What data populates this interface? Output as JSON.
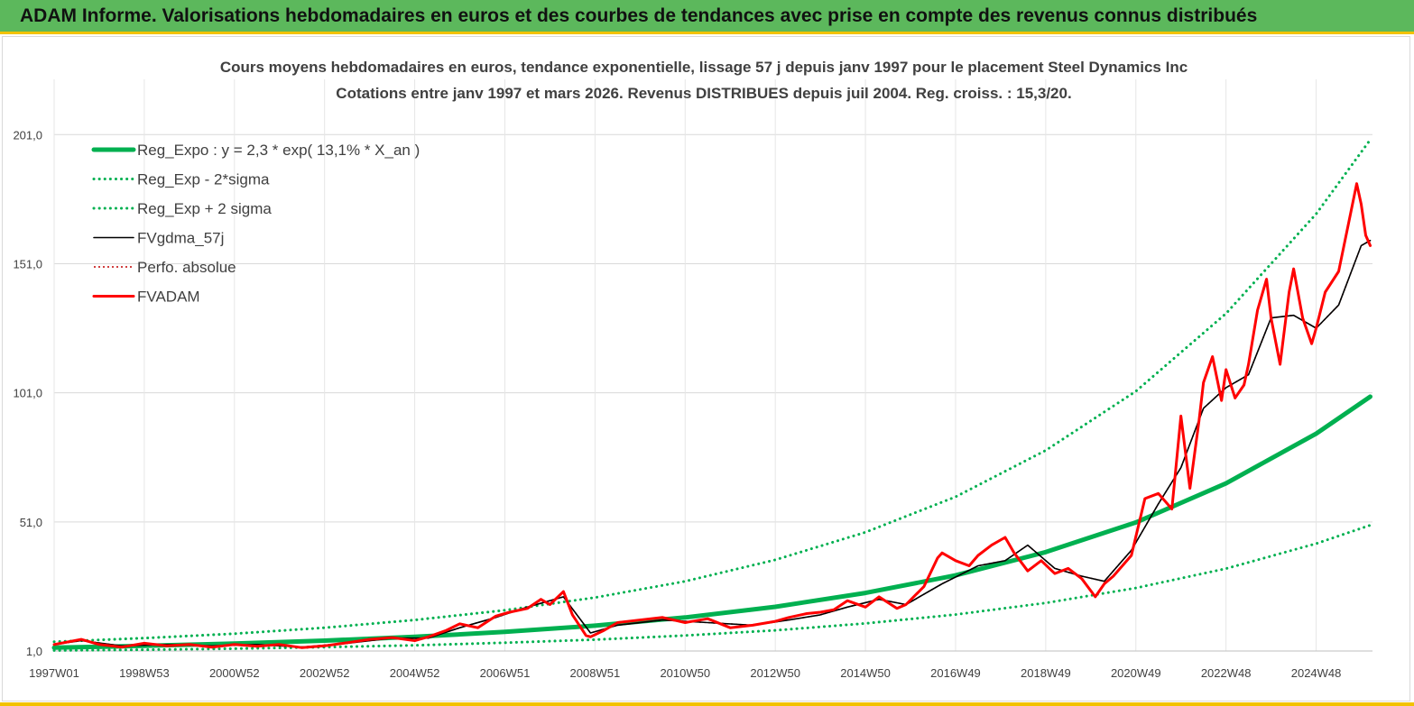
{
  "banner": {
    "title": "ADAM Informe. Valorisations hebdomadaires en euros et des courbes de tendances avec prise en compte des revenus connus distribués"
  },
  "colors": {
    "banner": "#5cb85c",
    "accent": "#f2c200",
    "trend": "#00b050",
    "price": "#ff0000",
    "smooth": "#000000",
    "grid": "#d9d9d9"
  },
  "chart_data": {
    "type": "line",
    "title": "Cours moyens hebdomadaires en euros, tendance exponentielle, lissage 57 j depuis janv 1997 pour le placement Steel Dynamics Inc",
    "subtitle": "Cotations entre janv 1997 et mars 2026. Revenus DISTRIBUES depuis juil 2004. Reg. croiss. : 15,3/20.",
    "xlabel": "",
    "ylabel": "",
    "xlim": [
      1997.0,
      2026.25
    ],
    "ylim": [
      1.0,
      221.0
    ],
    "yticks": [
      1.0,
      51.0,
      101.0,
      151.0,
      201.0
    ],
    "ytick_labels": [
      "1,0",
      "51,0",
      "101,0",
      "151,0",
      "201,0"
    ],
    "xtick_positions": [
      1997.0,
      1999.0,
      2001.0,
      2003.0,
      2005.0,
      2007.0,
      2009.0,
      2011.0,
      2013.0,
      2015.0,
      2017.0,
      2019.0,
      2021.0,
      2023.0,
      2025.0
    ],
    "xtick_labels": [
      "1997W01",
      "1998W53",
      "2000W52",
      "2002W52",
      "2004W52",
      "2006W51",
      "2008W51",
      "2010W50",
      "2012W50",
      "2014W50",
      "2016W49",
      "2018W49",
      "2020W49",
      "2022W48",
      "2024W48"
    ],
    "grid": true,
    "legend": "top-left",
    "series": [
      {
        "name": "Reg_Expo : y = 2,3 * exp( 13,1% *  X_an )",
        "style": "solid-thick",
        "color": "#00b050",
        "x": [
          1997,
          1999,
          2001,
          2003,
          2005,
          2007,
          2009,
          2011,
          2013,
          2015,
          2017,
          2019,
          2021,
          2023,
          2025,
          2026.2
        ],
        "values": [
          2.3,
          3.0,
          3.9,
          5.0,
          6.5,
          8.4,
          10.8,
          14.0,
          18.1,
          23.5,
          30.3,
          39.3,
          50.8,
          65.9,
          85.2,
          99.5
        ]
      },
      {
        "name": "Reg_Exp - 2*sigma",
        "style": "dotted",
        "color": "#00b050",
        "x": [
          1997,
          1999,
          2001,
          2003,
          2005,
          2007,
          2009,
          2011,
          2013,
          2015,
          2017,
          2019,
          2021,
          2023,
          2025,
          2026.2
        ],
        "values": [
          1.2,
          1.5,
          1.9,
          2.5,
          3.2,
          4.2,
          5.4,
          7.0,
          9.0,
          11.7,
          15.1,
          19.6,
          25.4,
          32.9,
          42.6,
          49.7
        ]
      },
      {
        "name": "Reg_Exp + 2 sigma",
        "style": "dotted",
        "color": "#00b050",
        "x": [
          1997,
          1999,
          2001,
          2003,
          2005,
          2007,
          2009,
          2011,
          2013,
          2015,
          2017,
          2019,
          2021,
          2023,
          2025,
          2026.2
        ],
        "values": [
          4.6,
          6.0,
          7.7,
          10.0,
          13.0,
          16.8,
          21.7,
          28.0,
          36.3,
          47.0,
          60.7,
          78.7,
          101.6,
          131.7,
          170.3,
          199.0
        ]
      },
      {
        "name": "FVgdma_57j",
        "style": "solid",
        "color": "#000000",
        "x": [
          1997,
          1997.6,
          1998.5,
          1999.5,
          2000.5,
          2001.5,
          2002.5,
          2003.5,
          2004.5,
          2005.3,
          2006.0,
          2006.8,
          2007.5,
          2008.3,
          2008.9,
          2009.5,
          2010.5,
          2011.5,
          2012.5,
          2013.3,
          2014.0,
          2014.6,
          2015.3,
          2015.9,
          2016.7,
          2017.5,
          2018.1,
          2018.6,
          2019.2,
          2019.8,
          2020.3,
          2020.9,
          2021.5,
          2022.0,
          2022.5,
          2023.0,
          2023.5,
          2024.0,
          2024.5,
          2025.0,
          2025.5,
          2026.0,
          2026.2
        ],
        "values": [
          3.5,
          5.0,
          3.0,
          3.5,
          3.0,
          3.5,
          2.5,
          4.0,
          6.0,
          6.0,
          10.0,
          14.0,
          18.0,
          22.0,
          8.0,
          11.0,
          13.0,
          12.0,
          11.0,
          13.0,
          15.0,
          18.0,
          21.0,
          19.0,
          27.0,
          34.0,
          36.0,
          42.0,
          33.0,
          30.0,
          28.0,
          40.0,
          58.0,
          72.0,
          95.0,
          103.0,
          108.0,
          130.0,
          131.0,
          126.0,
          135.0,
          158.0,
          160.0
        ]
      },
      {
        "name": "Perfo. absolue",
        "style": "dotted-thin",
        "color": "#c00000",
        "x": [
          1997,
          1997.6,
          1998.5,
          1999.5,
          2000.5,
          2001.5,
          2002.5,
          2003.5,
          2004.5,
          2005.3,
          2006.0,
          2006.8,
          2007.5,
          2008.3,
          2008.9,
          2009.5,
          2010.5,
          2011.5,
          2012.5,
          2013.3,
          2014.0,
          2014.6,
          2015.3,
          2015.9,
          2016.7,
          2017.5,
          2018.1,
          2018.6,
          2019.2,
          2019.8,
          2020.3,
          2020.9,
          2021.5,
          2022.0,
          2022.5,
          2023.0,
          2023.5,
          2024.0,
          2024.5,
          2025.0,
          2025.5,
          2026.0,
          2026.2
        ],
        "values": [
          3.5,
          5.0,
          3.0,
          3.5,
          3.0,
          3.5,
          2.5,
          4.0,
          6.0,
          6.0,
          10.0,
          14.0,
          18.0,
          22.0,
          8.0,
          11.0,
          13.0,
          12.0,
          11.0,
          13.0,
          15.0,
          18.0,
          21.0,
          19.0,
          27.0,
          34.0,
          36.0,
          42.0,
          33.0,
          30.0,
          28.0,
          40.0,
          58.0,
          72.0,
          95.0,
          103.0,
          108.0,
          130.0,
          131.0,
          126.0,
          135.0,
          158.0,
          160.0
        ]
      },
      {
        "name": "FVADAM",
        "style": "solid-medium",
        "color": "#ff0000",
        "x": [
          1997,
          1997.6,
          1998.0,
          1998.5,
          1999.0,
          1999.5,
          2000.0,
          2000.5,
          2001.0,
          2001.5,
          2002.0,
          2002.5,
          2003.0,
          2003.5,
          2004.0,
          2004.5,
          2005.0,
          2005.3,
          2005.7,
          2006.0,
          2006.4,
          2006.8,
          2007.1,
          2007.5,
          2007.8,
          2008.0,
          2008.3,
          2008.5,
          2008.8,
          2008.9,
          2009.2,
          2009.5,
          2010.0,
          2010.5,
          2011.0,
          2011.5,
          2012.0,
          2012.5,
          2013.0,
          2013.3,
          2013.7,
          2014.0,
          2014.3,
          2014.6,
          2015.0,
          2015.3,
          2015.7,
          2015.9,
          2016.3,
          2016.6,
          2016.7,
          2017.0,
          2017.3,
          2017.5,
          2017.8,
          2018.1,
          2018.3,
          2018.6,
          2018.9,
          2019.2,
          2019.5,
          2019.8,
          2020.1,
          2020.3,
          2020.5,
          2020.9,
          2021.2,
          2021.5,
          2021.8,
          2022.0,
          2022.2,
          2022.4,
          2022.5,
          2022.7,
          2022.9,
          2023.0,
          2023.2,
          2023.4,
          2023.5,
          2023.7,
          2023.9,
          2024.0,
          2024.2,
          2024.4,
          2024.5,
          2024.7,
          2024.9,
          2025.0,
          2025.2,
          2025.5,
          2025.7,
          2025.9,
          2026.0,
          2026.1,
          2026.2
        ],
        "values": [
          3.5,
          5.5,
          3.5,
          2.5,
          4.0,
          3.0,
          3.5,
          2.5,
          3.5,
          2.8,
          3.5,
          2.3,
          3.0,
          4.2,
          5.5,
          6.2,
          5.0,
          6.5,
          9.0,
          11.5,
          10.0,
          14.5,
          16.0,
          17.5,
          21.0,
          19.0,
          24.0,
          15.0,
          7.0,
          6.5,
          9.0,
          12.0,
          13.0,
          14.0,
          12.0,
          13.5,
          10.0,
          11.0,
          12.5,
          14.0,
          15.5,
          16.0,
          17.0,
          20.5,
          18.0,
          22.0,
          17.5,
          19.0,
          26.0,
          37.0,
          39.0,
          36.0,
          34.0,
          38.0,
          42.0,
          45.0,
          39.0,
          32.0,
          36.0,
          31.0,
          33.0,
          29.0,
          22.0,
          27.0,
          30.0,
          38.0,
          60.0,
          62.0,
          56.0,
          92.0,
          64.0,
          90.0,
          105.0,
          115.0,
          98.0,
          110.0,
          99.0,
          104.0,
          112.0,
          133.0,
          145.0,
          130.0,
          112.0,
          140.0,
          149.0,
          130.0,
          120.0,
          126.0,
          140.0,
          148.0,
          165.0,
          182.0,
          174.0,
          162.0,
          158.0
        ]
      }
    ]
  }
}
